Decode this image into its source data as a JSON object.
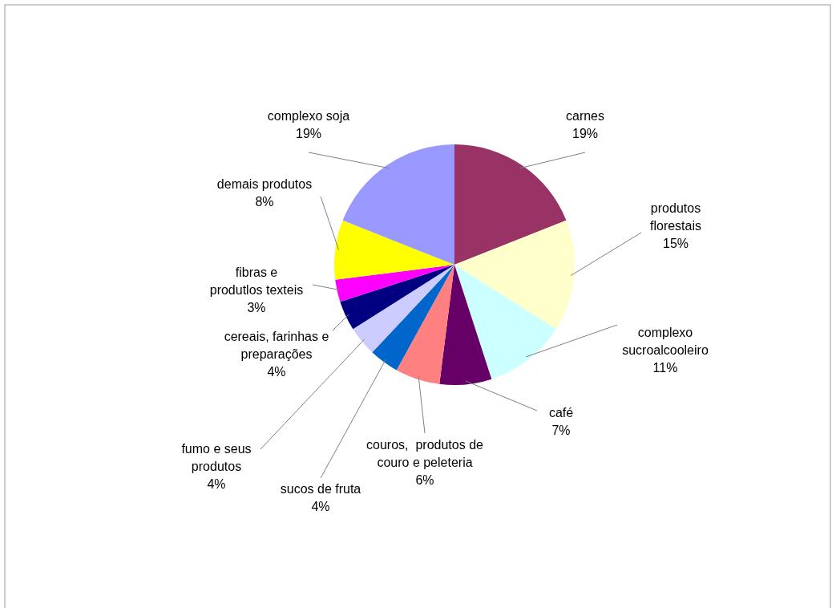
{
  "chart_data": {
    "type": "pie",
    "categories": [
      "carnes",
      "produtos florestais",
      "complexo sucroalcooleiro",
      "café",
      "couros,  produtos de couro e peleteria",
      "sucos de fruta",
      "fumo e seus produtos",
      "cereais, farinhas e preparações",
      "fibras e produtlos texteis",
      "demais produtos",
      "complexo soja"
    ],
    "values": [
      19,
      15,
      11,
      7,
      6,
      4,
      4,
      4,
      3,
      8,
      19
    ],
    "value_labels": [
      "19%",
      "15%",
      "11%",
      "7%",
      "6%",
      "4%",
      "4%",
      "4%",
      "3%",
      "8%",
      "19%"
    ],
    "colors": [
      "#993366",
      "#ffffcc",
      "#ccffff",
      "#660066",
      "#ff8080",
      "#0066cc",
      "#ccccff",
      "#000080",
      "#ff00ff",
      "#ffff00",
      "#9999ff"
    ]
  }
}
